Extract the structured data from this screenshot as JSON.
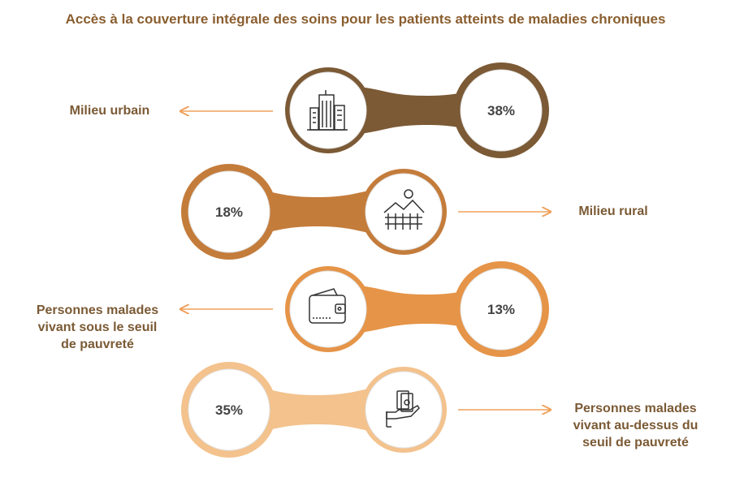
{
  "title": "Accès à la couverture intégrale des soins pour les patients atteints de maladies chroniques",
  "chart_data": {
    "type": "infographic",
    "title": "Accès à la couverture intégrale des soins pour les patients atteints de maladies chroniques",
    "items": [
      {
        "label": "Milieu urbain",
        "value": 38,
        "value_label": "38%",
        "icon": "city-buildings-icon",
        "color": "#7b5a35"
      },
      {
        "label": "Milieu rural",
        "value": 18,
        "value_label": "18%",
        "icon": "countryside-fence-icon",
        "color": "#c47c3b"
      },
      {
        "label": "Personnes malades vivant sous le seuil de pauvreté",
        "value": 13,
        "value_label": "13%",
        "icon": "wallet-icon",
        "color": "#e59448"
      },
      {
        "label": "Personnes malades vivant au-dessus du seuil de pauvreté",
        "value": 35,
        "value_label": "35%",
        "icon": "hand-money-icon",
        "color": "#f3c28d"
      }
    ]
  }
}
